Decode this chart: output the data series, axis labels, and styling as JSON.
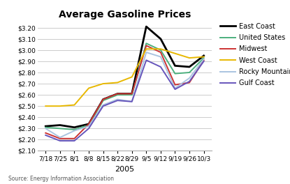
{
  "title": "Average Gasoline Prices",
  "xlabel": "2005",
  "source": "Source: Energy Information Association",
  "x_labels": [
    "7/18",
    "7/25",
    "8/1",
    "8/8",
    "8/15",
    "8/22",
    "8/29",
    "9/5",
    "9/12",
    "9/19",
    "9/26",
    "10/3"
  ],
  "ylim": [
    2.1,
    3.25
  ],
  "yticks": [
    2.1,
    2.2,
    2.3,
    2.4,
    2.5,
    2.6,
    2.7,
    2.8,
    2.9,
    3.0,
    3.1,
    3.2
  ],
  "series": {
    "East Coast": {
      "color": "#000000",
      "linewidth": 2.0,
      "values": [
        2.32,
        2.33,
        2.31,
        2.34,
        2.56,
        2.61,
        2.61,
        3.21,
        3.1,
        2.86,
        2.85,
        2.95
      ]
    },
    "United States": {
      "color": "#4caf7d",
      "linewidth": 1.4,
      "values": [
        2.31,
        2.3,
        2.29,
        2.33,
        2.55,
        2.6,
        2.6,
        3.06,
        3.0,
        2.79,
        2.8,
        2.93
      ]
    },
    "Midwest": {
      "color": "#cc3333",
      "linewidth": 1.4,
      "values": [
        2.26,
        2.21,
        2.21,
        2.34,
        2.56,
        2.61,
        2.61,
        3.04,
        2.98,
        2.69,
        2.71,
        2.91
      ]
    },
    "West Coast": {
      "color": "#e8b800",
      "linewidth": 1.4,
      "values": [
        2.5,
        2.5,
        2.51,
        2.66,
        2.7,
        2.71,
        2.76,
        3.01,
        3.01,
        2.97,
        2.93,
        2.94
      ]
    },
    "Rocky Mountain": {
      "color": "#aac4e0",
      "linewidth": 1.4,
      "values": [
        2.3,
        2.22,
        2.28,
        2.32,
        2.51,
        2.56,
        2.54,
        2.98,
        2.94,
        2.66,
        2.75,
        2.92
      ]
    },
    "Gulf Coast": {
      "color": "#6655bb",
      "linewidth": 1.4,
      "values": [
        2.24,
        2.19,
        2.19,
        2.3,
        2.5,
        2.55,
        2.54,
        2.91,
        2.85,
        2.65,
        2.72,
        2.9
      ]
    }
  },
  "background_color": "#ffffff",
  "grid_color": "#cccccc",
  "legend_order": [
    "East Coast",
    "United States",
    "Midwest",
    "West Coast",
    "Rocky Mountain",
    "Gulf Coast"
  ]
}
